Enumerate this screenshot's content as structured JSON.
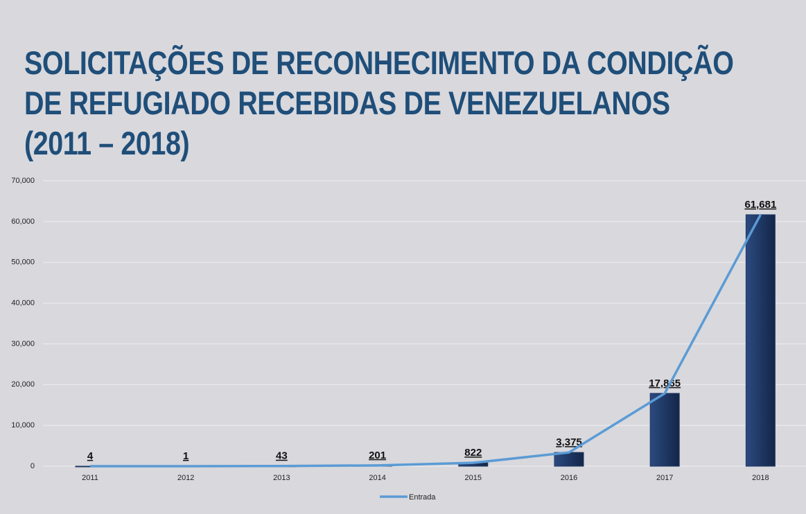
{
  "chart_data": {
    "type": "bar",
    "title": "SOLICITAÇÕES DE RECONHECIMENTO DA CONDIÇÃO\nDE REFUGIADO RECEBIDAS DE VENEZUELANOS\n(2011 – 2018)",
    "categories": [
      "2011",
      "2012",
      "2013",
      "2014",
      "2015",
      "2016",
      "2017",
      "2018"
    ],
    "values": [
      4,
      1,
      43,
      201,
      822,
      3375,
      17865,
      61681
    ],
    "value_labels": [
      "4",
      "1",
      "43",
      "201",
      "822",
      "3,375",
      "17,865",
      "61,681"
    ],
    "color": "#1f3864",
    "line": {
      "name": "Entrada",
      "color": "#5b9bd5"
    },
    "ylim": [
      0,
      70000
    ],
    "yticks": [
      0,
      {
        "value": 10000,
        "label": "10,000"
      },
      {
        "value": 20000,
        "label": "20,000"
      },
      {
        "value": 30000,
        "label": "30,000"
      },
      {
        "value": 40000,
        "label": "40,000"
      },
      {
        "value": 50000,
        "label": "50,000"
      },
      {
        "value": 60000,
        "label": "60,000"
      },
      {
        "value": 70000,
        "label": "70,000"
      }
    ],
    "grid": true,
    "legend": "bottom"
  }
}
